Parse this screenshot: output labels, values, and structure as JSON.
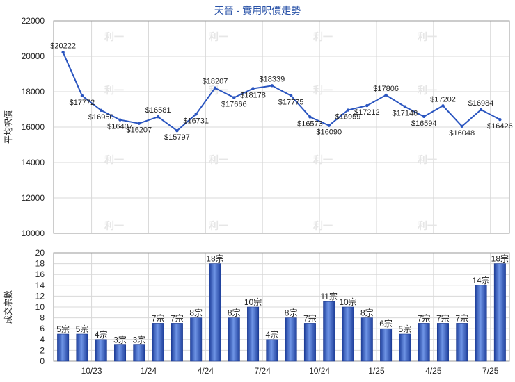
{
  "chart_data": [
    {
      "type": "line",
      "title": "天晉 - 實用呎價走勢",
      "ylabel": "平均呎價",
      "ylim": [
        10000,
        22000
      ],
      "yticks": [
        10000,
        12000,
        14000,
        16000,
        18000,
        20000,
        22000
      ],
      "series": [
        {
          "values": [
            20222,
            17772,
            16950,
            16407,
            16207,
            16581,
            15797,
            16731,
            18207,
            17666,
            18178,
            18339,
            17775,
            16573,
            16090,
            16959,
            17212,
            17806,
            17148,
            16594,
            17202,
            16048,
            16984,
            16426
          ],
          "labels": [
            "$20222",
            "$17772",
            "$16950",
            "$16407",
            "$16207",
            "$16581",
            "$15797",
            "$16731",
            "$18207",
            "$17666",
            "$18178",
            "$18339",
            "$17775",
            "$16573",
            "$16090",
            "$16959",
            "$17212",
            "$17806",
            "$17148",
            "$16594",
            "$17202",
            "$16048",
            "$16984",
            "$16426"
          ],
          "color": "#2a55c0"
        }
      ],
      "grid": true,
      "watermark": "利一"
    },
    {
      "type": "bar",
      "ylabel": "成交宗數",
      "ylim": [
        0,
        20
      ],
      "yticks": [
        0,
        2,
        4,
        6,
        8,
        10,
        12,
        14,
        16,
        18,
        20
      ],
      "values": [
        5,
        5,
        4,
        3,
        3,
        7,
        7,
        8,
        18,
        8,
        10,
        4,
        8,
        7,
        11,
        10,
        8,
        6,
        5,
        7,
        7,
        7,
        14,
        18
      ],
      "labels": [
        "5宗",
        "5宗",
        "4宗",
        "3宗",
        "3宗",
        "7宗",
        "7宗",
        "8宗",
        "18宗",
        "8宗",
        "10宗",
        "4宗",
        "8宗",
        "7宗",
        "11宗",
        "10宗",
        "8宗",
        "6宗",
        "5宗",
        "7宗",
        "7宗",
        "7宗",
        "14宗",
        "18宗"
      ],
      "xtick_labels": [
        "10/23",
        "1/24",
        "4/24",
        "7/24",
        "10/24",
        "1/25",
        "4/25",
        "7/25"
      ],
      "xtick_positions": [
        1.5,
        4.5,
        7.5,
        10.5,
        13.5,
        16.5,
        19.5,
        22.5
      ],
      "color": "#3a63c8",
      "grid": true
    }
  ]
}
